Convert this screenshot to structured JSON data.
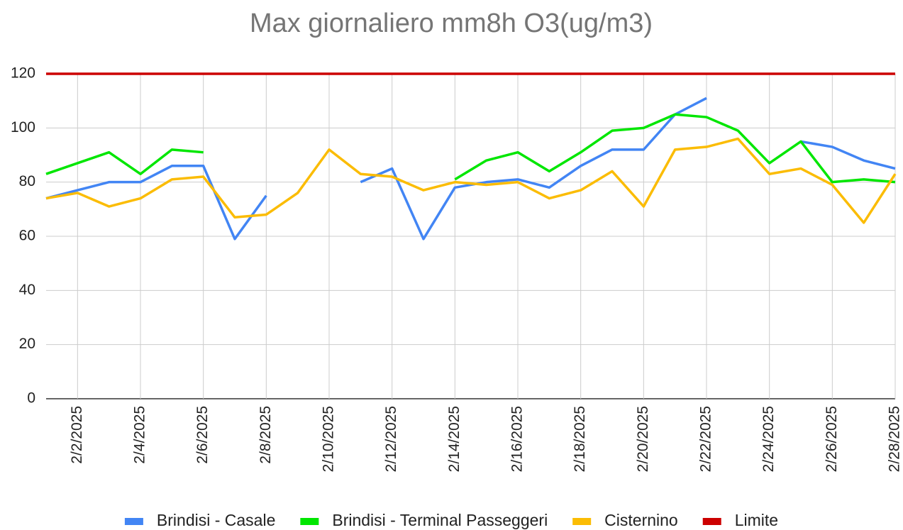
{
  "chart_data": {
    "type": "line",
    "title": "Max giornaliero mm8h O3(ug/m3)",
    "categories": [
      null,
      "2/2/2025",
      null,
      "2/4/2025",
      null,
      "2/6/2025",
      null,
      "2/8/2025",
      null,
      "2/10/2025",
      null,
      "2/12/2025",
      null,
      "2/14/2025",
      null,
      "2/16/2025",
      null,
      "2/18/2025",
      null,
      "2/20/2025",
      null,
      "2/22/2025",
      null,
      "2/24/2025",
      null,
      "2/26/2025",
      null,
      "2/28/2025"
    ],
    "series": [
      {
        "name": "Brindisi - Casale",
        "color": "#4285f4",
        "values": [
          74,
          77,
          80,
          80,
          86,
          86,
          59,
          75,
          null,
          null,
          80,
          85,
          59,
          78,
          80,
          81,
          78,
          86,
          92,
          92,
          105,
          111,
          null,
          null,
          95,
          93,
          88,
          85
        ]
      },
      {
        "name": "Brindisi - Terminal Passeggeri",
        "color": "#00e600",
        "values": [
          83,
          87,
          91,
          83,
          92,
          91,
          null,
          null,
          null,
          null,
          null,
          null,
          null,
          81,
          88,
          91,
          84,
          91,
          99,
          100,
          105,
          104,
          99,
          87,
          95,
          80,
          81,
          80
        ]
      },
      {
        "name": "Cisternino",
        "color": "#fbbc04",
        "values": [
          74,
          76,
          71,
          74,
          81,
          82,
          67,
          68,
          76,
          92,
          83,
          82,
          77,
          80,
          79,
          80,
          74,
          77,
          84,
          71,
          92,
          93,
          96,
          83,
          85,
          79,
          65,
          83
        ]
      },
      {
        "name": "Limite",
        "color": "#cc0000",
        "values": [
          120,
          120,
          120,
          120,
          120,
          120,
          120,
          120,
          120,
          120,
          120,
          120,
          120,
          120,
          120,
          120,
          120,
          120,
          120,
          120,
          120,
          120,
          120,
          120,
          120,
          120,
          120,
          120
        ]
      }
    ],
    "ylim": [
      0,
      120
    ],
    "yticks": [
      0,
      20,
      40,
      60,
      80,
      100,
      120
    ],
    "grid": true,
    "legend": "bottom"
  }
}
